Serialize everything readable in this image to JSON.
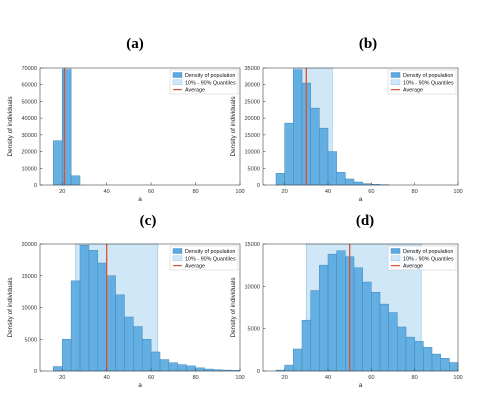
{
  "chart_data": [
    {
      "type": "bar",
      "panel_label": "(a)",
      "xlabel": "a",
      "ylabel": "Density of individuals",
      "xlim": [
        10,
        100
      ],
      "ylim": [
        0,
        70000
      ],
      "xticks": [
        20,
        40,
        60,
        80,
        100
      ],
      "yticks": [
        0,
        10000,
        20000,
        30000,
        40000,
        50000,
        60000,
        70000
      ],
      "bin_width": 4,
      "bin_starts": [
        16,
        20,
        24
      ],
      "values": [
        26500,
        69000,
        5500
      ],
      "quantile_range": [
        20,
        24
      ],
      "average": 21,
      "legend": [
        "Density of population",
        "10% - 90% Quantiles",
        "Average"
      ],
      "legend_position": "top-right"
    },
    {
      "type": "bar",
      "panel_label": "(b)",
      "xlabel": "a",
      "ylabel": "Density of individuals",
      "xlim": [
        10,
        100
      ],
      "ylim": [
        0,
        35000
      ],
      "xticks": [
        20,
        40,
        60,
        80,
        100
      ],
      "yticks": [
        0,
        5000,
        10000,
        15000,
        20000,
        25000,
        30000,
        35000
      ],
      "bin_width": 4,
      "bin_starts": [
        16,
        20,
        24,
        28,
        32,
        36,
        40,
        44,
        48,
        52,
        56,
        60,
        64
      ],
      "values": [
        3500,
        18500,
        34500,
        30500,
        23000,
        17000,
        10000,
        3800,
        1800,
        900,
        400,
        200,
        100
      ],
      "quantile_range": [
        24,
        42
      ],
      "average": 30,
      "legend": [
        "Density of population",
        "10% - 90% Quantiles",
        "Average"
      ],
      "legend_position": "top-right"
    },
    {
      "type": "bar",
      "panel_label": "(c)",
      "xlabel": "a",
      "ylabel": "Density of individuals",
      "xlim": [
        10,
        100
      ],
      "ylim": [
        0,
        20000
      ],
      "xticks": [
        20,
        40,
        60,
        80,
        100
      ],
      "yticks": [
        0,
        5000,
        10000,
        15000,
        20000
      ],
      "bin_width": 4,
      "bin_starts": [
        16,
        20,
        24,
        28,
        32,
        36,
        40,
        44,
        48,
        52,
        56,
        60,
        64,
        68,
        72,
        76,
        80,
        84,
        88,
        92,
        96
      ],
      "values": [
        700,
        5000,
        14200,
        19800,
        19000,
        17000,
        15000,
        12000,
        8500,
        7000,
        5000,
        3000,
        1800,
        1300,
        1000,
        800,
        500,
        300,
        200,
        150,
        100
      ],
      "quantile_range": [
        26,
        63
      ],
      "average": 40,
      "legend": [
        "Density of population",
        "10% - 90% Quantiles",
        "Average"
      ],
      "legend_position": "top-right"
    },
    {
      "type": "bar",
      "panel_label": "(d)",
      "xlabel": "a",
      "ylabel": "Density of individuals",
      "xlim": [
        10,
        100
      ],
      "ylim": [
        0,
        15000
      ],
      "xticks": [
        20,
        40,
        60,
        80,
        100
      ],
      "yticks": [
        0,
        5000,
        10000,
        15000
      ],
      "bin_width": 4,
      "bin_starts": [
        16,
        20,
        24,
        28,
        32,
        36,
        40,
        44,
        48,
        52,
        56,
        60,
        64,
        68,
        72,
        76,
        80,
        84,
        88,
        92,
        96
      ],
      "values": [
        100,
        700,
        2600,
        6000,
        9500,
        12500,
        13800,
        14200,
        13500,
        12200,
        10500,
        9300,
        7900,
        6900,
        5200,
        4000,
        3500,
        2800,
        2000,
        1500,
        1000
      ],
      "quantile_range": [
        30,
        83
      ],
      "average": 50,
      "legend": [
        "Density of population",
        "10% - 90% Quantiles",
        "Average"
      ],
      "legend_position": "top-right"
    }
  ],
  "colors": {
    "bar_fill": "#5aa9df",
    "bar_edge": "#3f88bd",
    "quantile_fill": "#cfe7f6",
    "quantile_edge": "#8ec5e6",
    "average_line": "#d9532c",
    "axis": "#444444"
  }
}
